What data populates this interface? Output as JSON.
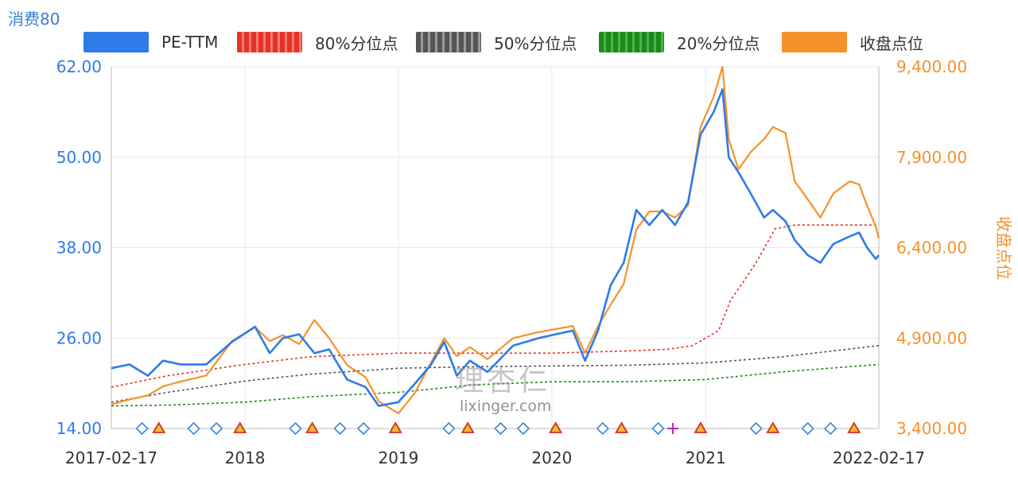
{
  "chart_data": {
    "type": "line",
    "title": "消费80",
    "y2label": "收盘点位",
    "colors": {
      "pe": "#2f7be8",
      "p80": "#e5332a",
      "p50": "#555555",
      "p20": "#1a8a1a",
      "close": "#f5922a"
    },
    "ylim_left": [
      14,
      62
    ],
    "ylim_right": [
      3400,
      9400
    ],
    "yticks_left": [
      "62.00",
      "50.00",
      "38.00",
      "26.00",
      "14.00"
    ],
    "yticks_right": [
      "9,400.00",
      "7,900.00",
      "6,400.00",
      "4,900.00",
      "3,400.00"
    ],
    "xlim": [
      "2017-02-17",
      "2022-02-17"
    ],
    "xtick_labels": [
      {
        "label": "2017-02-17",
        "date": "2017-02-17"
      },
      {
        "label": "2018",
        "date": "2018-01-01"
      },
      {
        "label": "2019",
        "date": "2019-01-01"
      },
      {
        "label": "2020",
        "date": "2020-01-01"
      },
      {
        "label": "2021",
        "date": "2021-01-01"
      },
      {
        "label": "2022-02-17",
        "date": "2022-02-17"
      }
    ],
    "legend": [
      "PE-TTM",
      "80%分位点",
      "50%分位点",
      "20%分位点",
      "收盘点位"
    ],
    "series": [
      {
        "name": "PE-TTM",
        "axis": "left",
        "points": [
          [
            "2017-02-17",
            22
          ],
          [
            "2017-04-01",
            22.5
          ],
          [
            "2017-05-15",
            21
          ],
          [
            "2017-06-20",
            23
          ],
          [
            "2017-08-01",
            22.5
          ],
          [
            "2017-10-01",
            22.5
          ],
          [
            "2017-12-01",
            25.5
          ],
          [
            "2018-01-25",
            27.5
          ],
          [
            "2018-03-01",
            24
          ],
          [
            "2018-04-01",
            26
          ],
          [
            "2018-05-10",
            26.5
          ],
          [
            "2018-06-15",
            24
          ],
          [
            "2018-07-20",
            24.5
          ],
          [
            "2018-09-01",
            20.5
          ],
          [
            "2018-10-15",
            19.5
          ],
          [
            "2018-11-15",
            17
          ],
          [
            "2019-01-01",
            17.5
          ],
          [
            "2019-02-10",
            20
          ],
          [
            "2019-03-20",
            22.5
          ],
          [
            "2019-04-20",
            25.5
          ],
          [
            "2019-05-20",
            21
          ],
          [
            "2019-06-20",
            23
          ],
          [
            "2019-08-01",
            21.5
          ],
          [
            "2019-10-01",
            25
          ],
          [
            "2019-12-01",
            26
          ],
          [
            "2020-01-10",
            26.5
          ],
          [
            "2020-02-20",
            27
          ],
          [
            "2020-03-20",
            23
          ],
          [
            "2020-04-20",
            27
          ],
          [
            "2020-05-20",
            33
          ],
          [
            "2020-06-20",
            36
          ],
          [
            "2020-07-20",
            43
          ],
          [
            "2020-08-20",
            41
          ],
          [
            "2020-09-20",
            43
          ],
          [
            "2020-10-20",
            41
          ],
          [
            "2020-11-20",
            44
          ],
          [
            "2020-12-20",
            53
          ],
          [
            "2021-01-20",
            56
          ],
          [
            "2021-02-10",
            59
          ],
          [
            "2021-02-25",
            50
          ],
          [
            "2021-03-20",
            48
          ],
          [
            "2021-04-20",
            45
          ],
          [
            "2021-05-20",
            42
          ],
          [
            "2021-06-10",
            43
          ],
          [
            "2021-07-10",
            41.5
          ],
          [
            "2021-08-01",
            39
          ],
          [
            "2021-09-01",
            37
          ],
          [
            "2021-10-01",
            36
          ],
          [
            "2021-11-01",
            38.5
          ],
          [
            "2021-12-10",
            39.5
          ],
          [
            "2022-01-01",
            40
          ],
          [
            "2022-01-20",
            38
          ],
          [
            "2022-02-10",
            36.5
          ],
          [
            "2022-02-17",
            37
          ]
        ]
      },
      {
        "name": "80%分位点",
        "axis": "left",
        "points": [
          [
            "2017-02-17",
            19.5
          ],
          [
            "2017-07-01",
            21
          ],
          [
            "2018-01-01",
            22.5
          ],
          [
            "2018-06-01",
            23.5
          ],
          [
            "2019-01-01",
            24
          ],
          [
            "2019-07-01",
            24
          ],
          [
            "2020-01-01",
            24
          ],
          [
            "2020-07-01",
            24.3
          ],
          [
            "2020-10-01",
            24.5
          ],
          [
            "2020-12-01",
            25
          ],
          [
            "2021-02-01",
            27
          ],
          [
            "2021-03-01",
            31
          ],
          [
            "2021-04-01",
            33.5
          ],
          [
            "2021-05-01",
            36
          ],
          [
            "2021-06-15",
            40.5
          ],
          [
            "2021-08-01",
            41
          ],
          [
            "2022-02-17",
            41
          ]
        ]
      },
      {
        "name": "50%分位点",
        "axis": "left",
        "points": [
          [
            "2017-02-17",
            17.5
          ],
          [
            "2017-07-01",
            18.8
          ],
          [
            "2018-01-01",
            20.3
          ],
          [
            "2018-06-01",
            21.2
          ],
          [
            "2019-01-01",
            22
          ],
          [
            "2019-07-01",
            22.2
          ],
          [
            "2020-01-01",
            22.3
          ],
          [
            "2020-07-01",
            22.4
          ],
          [
            "2021-01-01",
            22.7
          ],
          [
            "2021-07-01",
            23.5
          ],
          [
            "2022-02-17",
            25
          ]
        ]
      },
      {
        "name": "20%分位点",
        "axis": "left",
        "points": [
          [
            "2017-02-17",
            17
          ],
          [
            "2017-07-01",
            17.1
          ],
          [
            "2018-01-01",
            17.5
          ],
          [
            "2018-06-01",
            18.2
          ],
          [
            "2019-01-01",
            18.8
          ],
          [
            "2019-07-01",
            19.8
          ],
          [
            "2020-01-01",
            20.2
          ],
          [
            "2020-07-01",
            20.2
          ],
          [
            "2021-01-01",
            20.5
          ],
          [
            "2021-07-01",
            21.5
          ],
          [
            "2022-02-17",
            22.5
          ]
        ]
      },
      {
        "name": "收盘点位",
        "axis": "right",
        "points": [
          [
            "2017-02-17",
            3800
          ],
          [
            "2017-04-01",
            3880
          ],
          [
            "2017-05-15",
            3950
          ],
          [
            "2017-06-20",
            4100
          ],
          [
            "2017-08-01",
            4180
          ],
          [
            "2017-10-01",
            4280
          ],
          [
            "2017-12-01",
            4850
          ],
          [
            "2018-01-25",
            5080
          ],
          [
            "2018-03-01",
            4850
          ],
          [
            "2018-04-01",
            4950
          ],
          [
            "2018-05-10",
            4800
          ],
          [
            "2018-06-15",
            5200
          ],
          [
            "2018-07-20",
            4900
          ],
          [
            "2018-09-01",
            4450
          ],
          [
            "2018-10-15",
            4250
          ],
          [
            "2018-11-15",
            3850
          ],
          [
            "2019-01-01",
            3650
          ],
          [
            "2019-02-10",
            4000
          ],
          [
            "2019-03-20",
            4500
          ],
          [
            "2019-04-20",
            4900
          ],
          [
            "2019-05-20",
            4600
          ],
          [
            "2019-06-20",
            4750
          ],
          [
            "2019-08-01",
            4550
          ],
          [
            "2019-10-01",
            4900
          ],
          [
            "2019-12-01",
            5000
          ],
          [
            "2020-01-10",
            5050
          ],
          [
            "2020-02-20",
            5100
          ],
          [
            "2020-03-20",
            4650
          ],
          [
            "2020-04-20",
            5100
          ],
          [
            "2020-05-20",
            5450
          ],
          [
            "2020-06-20",
            5800
          ],
          [
            "2020-07-20",
            6700
          ],
          [
            "2020-08-20",
            7000
          ],
          [
            "2020-09-20",
            7000
          ],
          [
            "2020-10-20",
            6900
          ],
          [
            "2020-11-20",
            7100
          ],
          [
            "2020-12-20",
            8400
          ],
          [
            "2021-01-20",
            8900
          ],
          [
            "2021-02-10",
            9400
          ],
          [
            "2021-02-25",
            8200
          ],
          [
            "2021-03-20",
            7700
          ],
          [
            "2021-04-20",
            8000
          ],
          [
            "2021-05-20",
            8200
          ],
          [
            "2021-06-10",
            8400
          ],
          [
            "2021-07-10",
            8300
          ],
          [
            "2021-08-01",
            7500
          ],
          [
            "2021-09-01",
            7200
          ],
          [
            "2021-10-01",
            6900
          ],
          [
            "2021-11-01",
            7300
          ],
          [
            "2021-12-10",
            7500
          ],
          [
            "2022-01-01",
            7450
          ],
          [
            "2022-01-20",
            7100
          ],
          [
            "2022-02-10",
            6750
          ],
          [
            "2022-02-17",
            6550
          ]
        ]
      }
    ],
    "event_markers": [
      {
        "type": "diamond",
        "date": "2017-05-01"
      },
      {
        "type": "triangle",
        "date": "2017-06-10"
      },
      {
        "type": "diamond",
        "date": "2017-09-01"
      },
      {
        "type": "diamond",
        "date": "2017-10-25"
      },
      {
        "type": "triangle",
        "date": "2017-12-20"
      },
      {
        "type": "diamond",
        "date": "2018-05-01"
      },
      {
        "type": "triangle",
        "date": "2018-06-10"
      },
      {
        "type": "diamond",
        "date": "2018-08-15"
      },
      {
        "type": "diamond",
        "date": "2018-10-10"
      },
      {
        "type": "triangle",
        "date": "2018-12-25"
      },
      {
        "type": "diamond",
        "date": "2019-05-01"
      },
      {
        "type": "triangle",
        "date": "2019-06-15"
      },
      {
        "type": "diamond",
        "date": "2019-09-01"
      },
      {
        "type": "diamond",
        "date": "2019-10-25"
      },
      {
        "type": "triangle",
        "date": "2020-01-10"
      },
      {
        "type": "diamond",
        "date": "2020-05-01"
      },
      {
        "type": "triangle",
        "date": "2020-06-15"
      },
      {
        "type": "diamond",
        "date": "2020-09-10"
      },
      {
        "type": "plus",
        "date": "2020-10-15"
      },
      {
        "type": "triangle",
        "date": "2020-12-20"
      },
      {
        "type": "diamond",
        "date": "2021-05-01"
      },
      {
        "type": "triangle",
        "date": "2021-06-10"
      },
      {
        "type": "diamond",
        "date": "2021-09-01"
      },
      {
        "type": "diamond",
        "date": "2021-10-25"
      },
      {
        "type": "triangle",
        "date": "2021-12-20"
      }
    ]
  },
  "watermark": {
    "text": "理杏仁",
    "url": "lixinger.com"
  }
}
